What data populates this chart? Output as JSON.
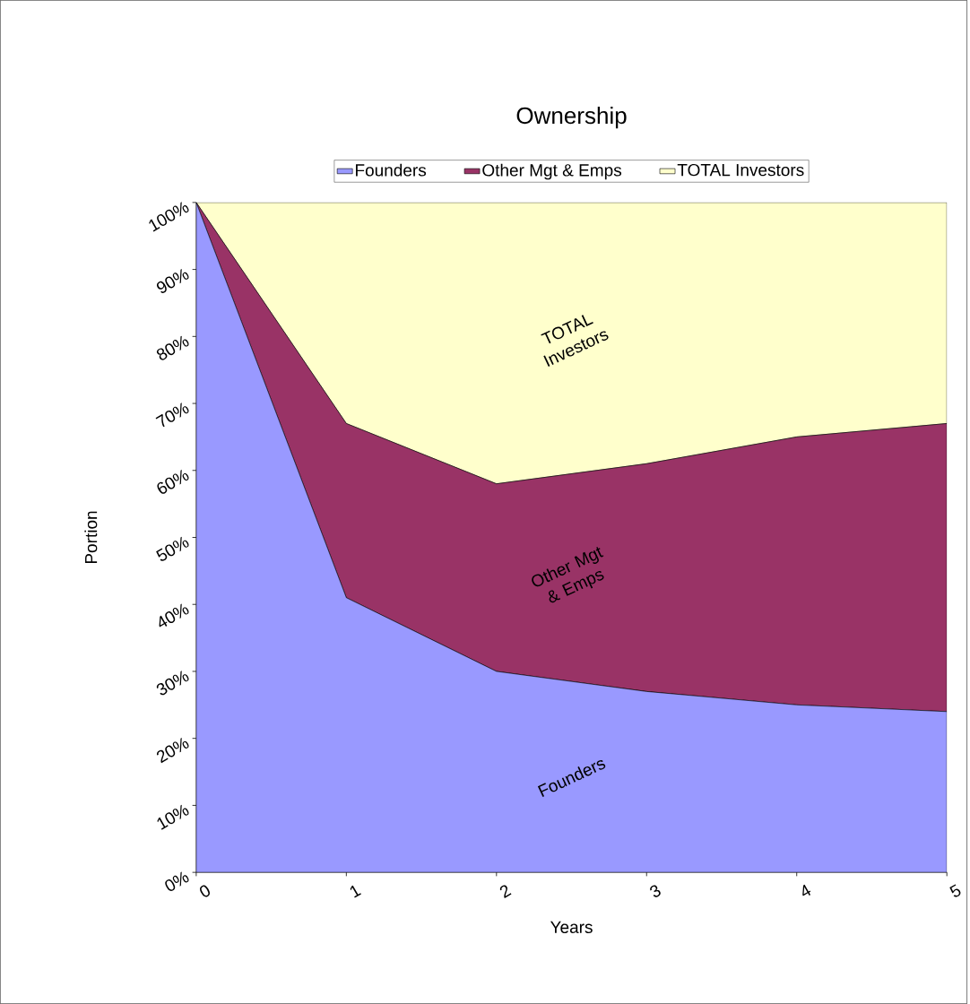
{
  "chart_data": {
    "type": "area",
    "title": "Ownership",
    "xlabel": "Years",
    "ylabel": "Portion",
    "stacked": true,
    "legend": "top",
    "x": [
      0,
      1,
      2,
      3,
      4,
      5
    ],
    "series": [
      {
        "name": "Founders",
        "color": "#9999ff",
        "values": [
          100,
          41,
          30,
          27,
          25,
          24
        ]
      },
      {
        "name": "Other Mgt & Emps",
        "color": "#993366",
        "values": [
          0,
          26,
          28,
          34,
          40,
          43
        ]
      },
      {
        "name": "TOTAL Investors",
        "color": "#ffffcc",
        "values": [
          0,
          33,
          42,
          39,
          35,
          33
        ]
      }
    ],
    "xlim": [
      0,
      5
    ],
    "xticks": [
      0,
      1,
      2,
      3,
      4,
      5
    ],
    "ylim": [
      0,
      100
    ],
    "yticks": [
      {
        "value": 0,
        "label": "0%"
      },
      {
        "value": 10,
        "label": "10%"
      },
      {
        "value": 20,
        "label": "20%"
      },
      {
        "value": 30,
        "label": "30%"
      },
      {
        "value": 40,
        "label": "40%"
      },
      {
        "value": 50,
        "label": "50%"
      },
      {
        "value": 60,
        "label": "60%"
      },
      {
        "value": 70,
        "label": "70%"
      },
      {
        "value": 80,
        "label": "80%"
      },
      {
        "value": 90,
        "label": "90%"
      },
      {
        "value": 100,
        "label": "100%"
      }
    ],
    "annotations": [
      "Founders",
      "Other Mgt & Emps",
      "TOTAL Investors"
    ]
  }
}
